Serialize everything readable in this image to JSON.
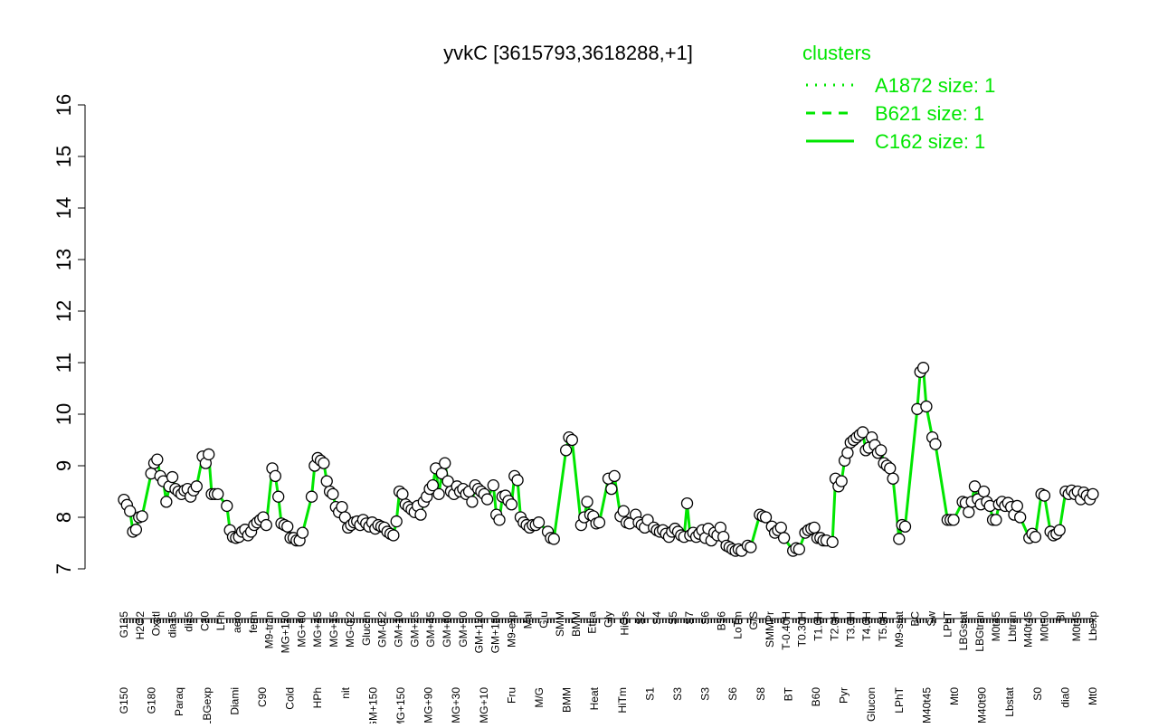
{
  "chart_data": {
    "type": "line",
    "title": "yvkC [3615793,3618288,+1]",
    "xlabel": "",
    "ylabel": "",
    "ylim": [
      7,
      16
    ],
    "yticks": [
      7,
      8,
      9,
      10,
      11,
      12,
      13,
      14,
      15,
      16
    ],
    "grid": false,
    "line_color": "#00e600",
    "marker_face": "#ffffff",
    "marker_edge": "#000000",
    "legend": {
      "title": "clusters",
      "placement": "top-right",
      "color": "#00e600",
      "entries": [
        {
          "label": "A1872 size: 1",
          "style": "dotted"
        },
        {
          "label": "B621 size: 1",
          "style": "dashed"
        },
        {
          "label": "C162 size: 1",
          "style": "solid"
        }
      ]
    },
    "tick_labels_upper": [
      "G135",
      "H2O2",
      "Oxctl",
      "dia15",
      "dia5",
      "C30",
      "LPh",
      "aero",
      "ferm",
      "M9-tran",
      "MG+120",
      "MG+60",
      "MG+45",
      "MG+15",
      "MG-0.2",
      "Glucon",
      "GM-0.2",
      "GM+10",
      "GM+25",
      "GM+45",
      "GM+60",
      "GM+90",
      "GM+120",
      "GM+150",
      "M9-exp",
      "Mal",
      "Glu",
      "SMM",
      "BMM",
      "Etha",
      "Gly",
      "HiOs",
      "S2",
      "S4",
      "S5",
      "S7",
      "S6",
      "B36",
      "LoTm",
      "G/S",
      "SMMPr",
      "T-0.40H",
      "T0.30H",
      "T1.0H",
      "T2.0H",
      "T3.0H",
      "T4.0H",
      "T5.0H",
      "M9-stat",
      "BC",
      "Sw",
      "LPhT",
      "LBGstat",
      "LBGtran",
      "M0t45",
      "Lbtran",
      "M40t45",
      "M0t90",
      "BI",
      "M0t45",
      "Lbexp"
    ],
    "tick_labels_lower": [
      "G150",
      "G180",
      "Paraq",
      "LBGexp",
      "Diami",
      "C90",
      "Cold",
      "HPh",
      "nit",
      "GM+150",
      "MG+150",
      "MG+90",
      "MG+30",
      "MG+10",
      "Fru",
      "M/G",
      "BMM",
      "Heat",
      "HiTm",
      "S1",
      "S3",
      "S3",
      "S6",
      "S8",
      "BT",
      "B60",
      "Pyr",
      "Glucon",
      "LPhT",
      "M40t45",
      "Mt0",
      "M40t90",
      "Lbstat",
      "S0",
      "dia0",
      "Mt0"
    ],
    "points": [
      {
        "x": 1,
        "y": 8.34
      },
      {
        "x": 2,
        "y": 8.24
      },
      {
        "x": 3,
        "y": 8.12
      },
      {
        "x": 4,
        "y": 7.72
      },
      {
        "x": 5,
        "y": 7.76
      },
      {
        "x": 6,
        "y": 8.0
      },
      {
        "x": 7,
        "y": 8.02
      },
      {
        "x": 10,
        "y": 8.85
      },
      {
        "x": 11,
        "y": 9.05
      },
      {
        "x": 12,
        "y": 9.12
      },
      {
        "x": 13,
        "y": 8.8
      },
      {
        "x": 14,
        "y": 8.7
      },
      {
        "x": 15,
        "y": 8.3
      },
      {
        "x": 16,
        "y": 8.6
      },
      {
        "x": 17,
        "y": 8.78
      },
      {
        "x": 18,
        "y": 8.55
      },
      {
        "x": 19,
        "y": 8.5
      },
      {
        "x": 20,
        "y": 8.45
      },
      {
        "x": 21,
        "y": 8.52
      },
      {
        "x": 22,
        "y": 8.55
      },
      {
        "x": 23,
        "y": 8.4
      },
      {
        "x": 24,
        "y": 8.52
      },
      {
        "x": 25,
        "y": 8.6
      },
      {
        "x": 27,
        "y": 9.18
      },
      {
        "x": 28,
        "y": 9.05
      },
      {
        "x": 29,
        "y": 9.22
      },
      {
        "x": 30,
        "y": 8.45
      },
      {
        "x": 31,
        "y": 8.45
      },
      {
        "x": 32,
        "y": 8.45
      },
      {
        "x": 35,
        "y": 8.22
      },
      {
        "x": 36,
        "y": 7.75
      },
      {
        "x": 37,
        "y": 7.62
      },
      {
        "x": 38,
        "y": 7.6
      },
      {
        "x": 39,
        "y": 7.62
      },
      {
        "x": 40,
        "y": 7.72
      },
      {
        "x": 41,
        "y": 7.76
      },
      {
        "x": 42,
        "y": 7.65
      },
      {
        "x": 43,
        "y": 7.72
      },
      {
        "x": 44,
        "y": 7.85
      },
      {
        "x": 45,
        "y": 7.9
      },
      {
        "x": 46,
        "y": 7.95
      },
      {
        "x": 47,
        "y": 8.0
      },
      {
        "x": 48,
        "y": 7.85
      },
      {
        "x": 50,
        "y": 8.95
      },
      {
        "x": 51,
        "y": 8.8
      },
      {
        "x": 52,
        "y": 8.4
      },
      {
        "x": 53,
        "y": 7.88
      },
      {
        "x": 54,
        "y": 7.85
      },
      {
        "x": 55,
        "y": 7.82
      },
      {
        "x": 56,
        "y": 7.6
      },
      {
        "x": 57,
        "y": 7.6
      },
      {
        "x": 58,
        "y": 7.55
      },
      {
        "x": 59,
        "y": 7.55
      },
      {
        "x": 60,
        "y": 7.7
      },
      {
        "x": 63,
        "y": 8.4
      },
      {
        "x": 64,
        "y": 9.0
      },
      {
        "x": 65,
        "y": 9.15
      },
      {
        "x": 66,
        "y": 9.1
      },
      {
        "x": 67,
        "y": 9.05
      },
      {
        "x": 68,
        "y": 8.7
      },
      {
        "x": 69,
        "y": 8.5
      },
      {
        "x": 70,
        "y": 8.45
      },
      {
        "x": 71,
        "y": 8.2
      },
      {
        "x": 72,
        "y": 8.1
      },
      {
        "x": 73,
        "y": 8.2
      },
      {
        "x": 74,
        "y": 8.0
      },
      {
        "x": 75,
        "y": 7.8
      },
      {
        "x": 76,
        "y": 7.85
      },
      {
        "x": 77,
        "y": 7.9
      },
      {
        "x": 78,
        "y": 7.92
      },
      {
        "x": 79,
        "y": 7.85
      },
      {
        "x": 80,
        "y": 7.95
      },
      {
        "x": 81,
        "y": 7.88
      },
      {
        "x": 82,
        "y": 7.82
      },
      {
        "x": 83,
        "y": 7.9
      },
      {
        "x": 84,
        "y": 7.78
      },
      {
        "x": 85,
        "y": 7.85
      },
      {
        "x": 86,
        "y": 7.82
      },
      {
        "x": 87,
        "y": 7.8
      },
      {
        "x": 88,
        "y": 7.72
      },
      {
        "x": 89,
        "y": 7.68
      },
      {
        "x": 90,
        "y": 7.65
      },
      {
        "x": 91,
        "y": 7.92
      },
      {
        "x": 92,
        "y": 8.5
      },
      {
        "x": 93,
        "y": 8.45
      },
      {
        "x": 94,
        "y": 8.25
      },
      {
        "x": 95,
        "y": 8.2
      },
      {
        "x": 96,
        "y": 8.15
      },
      {
        "x": 97,
        "y": 8.1
      },
      {
        "x": 98,
        "y": 8.22
      },
      {
        "x": 99,
        "y": 8.05
      },
      {
        "x": 100,
        "y": 8.3
      },
      {
        "x": 101,
        "y": 8.4
      },
      {
        "x": 102,
        "y": 8.55
      },
      {
        "x": 103,
        "y": 8.62
      },
      {
        "x": 104,
        "y": 8.95
      },
      {
        "x": 105,
        "y": 8.45
      },
      {
        "x": 106,
        "y": 8.85
      },
      {
        "x": 107,
        "y": 9.05
      },
      {
        "x": 108,
        "y": 8.7
      },
      {
        "x": 109,
        "y": 8.5
      },
      {
        "x": 110,
        "y": 8.45
      },
      {
        "x": 111,
        "y": 8.6
      },
      {
        "x": 112,
        "y": 8.5
      },
      {
        "x": 113,
        "y": 8.55
      },
      {
        "x": 114,
        "y": 8.45
      },
      {
        "x": 115,
        "y": 8.5
      },
      {
        "x": 116,
        "y": 8.3
      },
      {
        "x": 117,
        "y": 8.62
      },
      {
        "x": 118,
        "y": 8.55
      },
      {
        "x": 119,
        "y": 8.5
      },
      {
        "x": 120,
        "y": 8.45
      },
      {
        "x": 121,
        "y": 8.35
      },
      {
        "x": 123,
        "y": 8.62
      },
      {
        "x": 124,
        "y": 8.05
      },
      {
        "x": 125,
        "y": 7.95
      },
      {
        "x": 126,
        "y": 8.4
      },
      {
        "x": 127,
        "y": 8.42
      },
      {
        "x": 128,
        "y": 8.32
      },
      {
        "x": 129,
        "y": 8.25
      },
      {
        "x": 130,
        "y": 8.8
      },
      {
        "x": 131,
        "y": 8.72
      },
      {
        "x": 132,
        "y": 8.0
      },
      {
        "x": 133,
        "y": 7.9
      },
      {
        "x": 134,
        "y": 7.85
      },
      {
        "x": 135,
        "y": 7.8
      },
      {
        "x": 136,
        "y": 7.85
      },
      {
        "x": 137,
        "y": 7.85
      },
      {
        "x": 138,
        "y": 7.9
      },
      {
        "x": 141,
        "y": 7.72
      },
      {
        "x": 142,
        "y": 7.6
      },
      {
        "x": 143,
        "y": 7.58
      },
      {
        "x": 147,
        "y": 9.3
      },
      {
        "x": 148,
        "y": 9.55
      },
      {
        "x": 149,
        "y": 9.5
      },
      {
        "x": 152,
        "y": 7.85
      },
      {
        "x": 153,
        "y": 8.0
      },
      {
        "x": 154,
        "y": 8.3
      },
      {
        "x": 155,
        "y": 8.05
      },
      {
        "x": 156,
        "y": 8.02
      },
      {
        "x": 157,
        "y": 7.88
      },
      {
        "x": 158,
        "y": 7.9
      },
      {
        "x": 161,
        "y": 8.75
      },
      {
        "x": 162,
        "y": 8.55
      },
      {
        "x": 163,
        "y": 8.8
      },
      {
        "x": 165,
        "y": 8.02
      },
      {
        "x": 166,
        "y": 8.12
      },
      {
        "x": 167,
        "y": 7.9
      },
      {
        "x": 168,
        "y": 7.88
      },
      {
        "x": 170,
        "y": 8.05
      },
      {
        "x": 171,
        "y": 7.9
      },
      {
        "x": 172,
        "y": 7.85
      },
      {
        "x": 173,
        "y": 7.8
      },
      {
        "x": 174,
        "y": 7.95
      },
      {
        "x": 176,
        "y": 7.8
      },
      {
        "x": 177,
        "y": 7.75
      },
      {
        "x": 178,
        "y": 7.72
      },
      {
        "x": 179,
        "y": 7.75
      },
      {
        "x": 180,
        "y": 7.68
      },
      {
        "x": 181,
        "y": 7.62
      },
      {
        "x": 182,
        "y": 7.72
      },
      {
        "x": 183,
        "y": 7.78
      },
      {
        "x": 184,
        "y": 7.72
      },
      {
        "x": 185,
        "y": 7.65
      },
      {
        "x": 186,
        "y": 7.62
      },
      {
        "x": 187,
        "y": 8.27
      },
      {
        "x": 188,
        "y": 7.65
      },
      {
        "x": 189,
        "y": 7.7
      },
      {
        "x": 190,
        "y": 7.62
      },
      {
        "x": 191,
        "y": 7.68
      },
      {
        "x": 192,
        "y": 7.75
      },
      {
        "x": 193,
        "y": 7.6
      },
      {
        "x": 194,
        "y": 7.78
      },
      {
        "x": 195,
        "y": 7.55
      },
      {
        "x": 196,
        "y": 7.7
      },
      {
        "x": 197,
        "y": 7.65
      },
      {
        "x": 198,
        "y": 7.8
      },
      {
        "x": 199,
        "y": 7.62
      },
      {
        "x": 200,
        "y": 7.45
      },
      {
        "x": 201,
        "y": 7.42
      },
      {
        "x": 202,
        "y": 7.38
      },
      {
        "x": 203,
        "y": 7.35
      },
      {
        "x": 204,
        "y": 7.38
      },
      {
        "x": 205,
        "y": 7.35
      },
      {
        "x": 207,
        "y": 7.45
      },
      {
        "x": 208,
        "y": 7.42
      },
      {
        "x": 211,
        "y": 8.05
      },
      {
        "x": 212,
        "y": 8.02
      },
      {
        "x": 213,
        "y": 8.0
      },
      {
        "x": 215,
        "y": 7.82
      },
      {
        "x": 216,
        "y": 7.7
      },
      {
        "x": 217,
        "y": 7.75
      },
      {
        "x": 218,
        "y": 7.8
      },
      {
        "x": 219,
        "y": 7.6
      },
      {
        "x": 222,
        "y": 7.35
      },
      {
        "x": 223,
        "y": 7.4
      },
      {
        "x": 224,
        "y": 7.38
      },
      {
        "x": 226,
        "y": 7.7
      },
      {
        "x": 227,
        "y": 7.75
      },
      {
        "x": 228,
        "y": 7.78
      },
      {
        "x": 229,
        "y": 7.8
      },
      {
        "x": 230,
        "y": 7.6
      },
      {
        "x": 231,
        "y": 7.6
      },
      {
        "x": 232,
        "y": 7.55
      },
      {
        "x": 233,
        "y": 7.55
      },
      {
        "x": 235,
        "y": 7.52
      },
      {
        "x": 236,
        "y": 8.75
      },
      {
        "x": 237,
        "y": 8.6
      },
      {
        "x": 238,
        "y": 8.7
      },
      {
        "x": 239,
        "y": 9.1
      },
      {
        "x": 240,
        "y": 9.25
      },
      {
        "x": 241,
        "y": 9.45
      },
      {
        "x": 242,
        "y": 9.5
      },
      {
        "x": 243,
        "y": 9.55
      },
      {
        "x": 244,
        "y": 9.6
      },
      {
        "x": 245,
        "y": 9.65
      },
      {
        "x": 246,
        "y": 9.3
      },
      {
        "x": 247,
        "y": 9.35
      },
      {
        "x": 248,
        "y": 9.55
      },
      {
        "x": 249,
        "y": 9.4
      },
      {
        "x": 250,
        "y": 9.25
      },
      {
        "x": 251,
        "y": 9.3
      },
      {
        "x": 252,
        "y": 9.05
      },
      {
        "x": 253,
        "y": 9.0
      },
      {
        "x": 254,
        "y": 8.95
      },
      {
        "x": 255,
        "y": 8.75
      },
      {
        "x": 257,
        "y": 7.58
      },
      {
        "x": 258,
        "y": 7.85
      },
      {
        "x": 259,
        "y": 7.82
      },
      {
        "x": 263,
        "y": 10.1
      },
      {
        "x": 264,
        "y": 10.82
      },
      {
        "x": 265,
        "y": 10.9
      },
      {
        "x": 266,
        "y": 10.15
      },
      {
        "x": 268,
        "y": 9.55
      },
      {
        "x": 269,
        "y": 9.42
      },
      {
        "x": 273,
        "y": 7.95
      },
      {
        "x": 274,
        "y": 7.95
      },
      {
        "x": 275,
        "y": 7.95
      },
      {
        "x": 278,
        "y": 8.3
      },
      {
        "x": 279,
        "y": 8.28
      },
      {
        "x": 280,
        "y": 8.1
      },
      {
        "x": 281,
        "y": 8.3
      },
      {
        "x": 282,
        "y": 8.6
      },
      {
        "x": 283,
        "y": 8.35
      },
      {
        "x": 284,
        "y": 8.25
      },
      {
        "x": 285,
        "y": 8.5
      },
      {
        "x": 286,
        "y": 8.3
      },
      {
        "x": 287,
        "y": 8.22
      },
      {
        "x": 288,
        "y": 7.95
      },
      {
        "x": 289,
        "y": 7.95
      },
      {
        "x": 290,
        "y": 8.25
      },
      {
        "x": 291,
        "y": 8.3
      },
      {
        "x": 292,
        "y": 8.22
      },
      {
        "x": 293,
        "y": 8.28
      },
      {
        "x": 294,
        "y": 8.2
      },
      {
        "x": 295,
        "y": 8.05
      },
      {
        "x": 296,
        "y": 8.22
      },
      {
        "x": 297,
        "y": 8.0
      },
      {
        "x": 300,
        "y": 7.6
      },
      {
        "x": 301,
        "y": 7.68
      },
      {
        "x": 302,
        "y": 7.62
      },
      {
        "x": 304,
        "y": 8.45
      },
      {
        "x": 305,
        "y": 8.42
      },
      {
        "x": 307,
        "y": 7.72
      },
      {
        "x": 308,
        "y": 7.65
      },
      {
        "x": 309,
        "y": 7.68
      },
      {
        "x": 310,
        "y": 7.75
      },
      {
        "x": 312,
        "y": 8.5
      },
      {
        "x": 313,
        "y": 8.45
      },
      {
        "x": 314,
        "y": 8.52
      },
      {
        "x": 315,
        "y": 8.45
      },
      {
        "x": 316,
        "y": 8.5
      },
      {
        "x": 317,
        "y": 8.35
      },
      {
        "x": 318,
        "y": 8.48
      },
      {
        "x": 319,
        "y": 8.42
      },
      {
        "x": 320,
        "y": 8.35
      },
      {
        "x": 321,
        "y": 8.45
      }
    ]
  }
}
